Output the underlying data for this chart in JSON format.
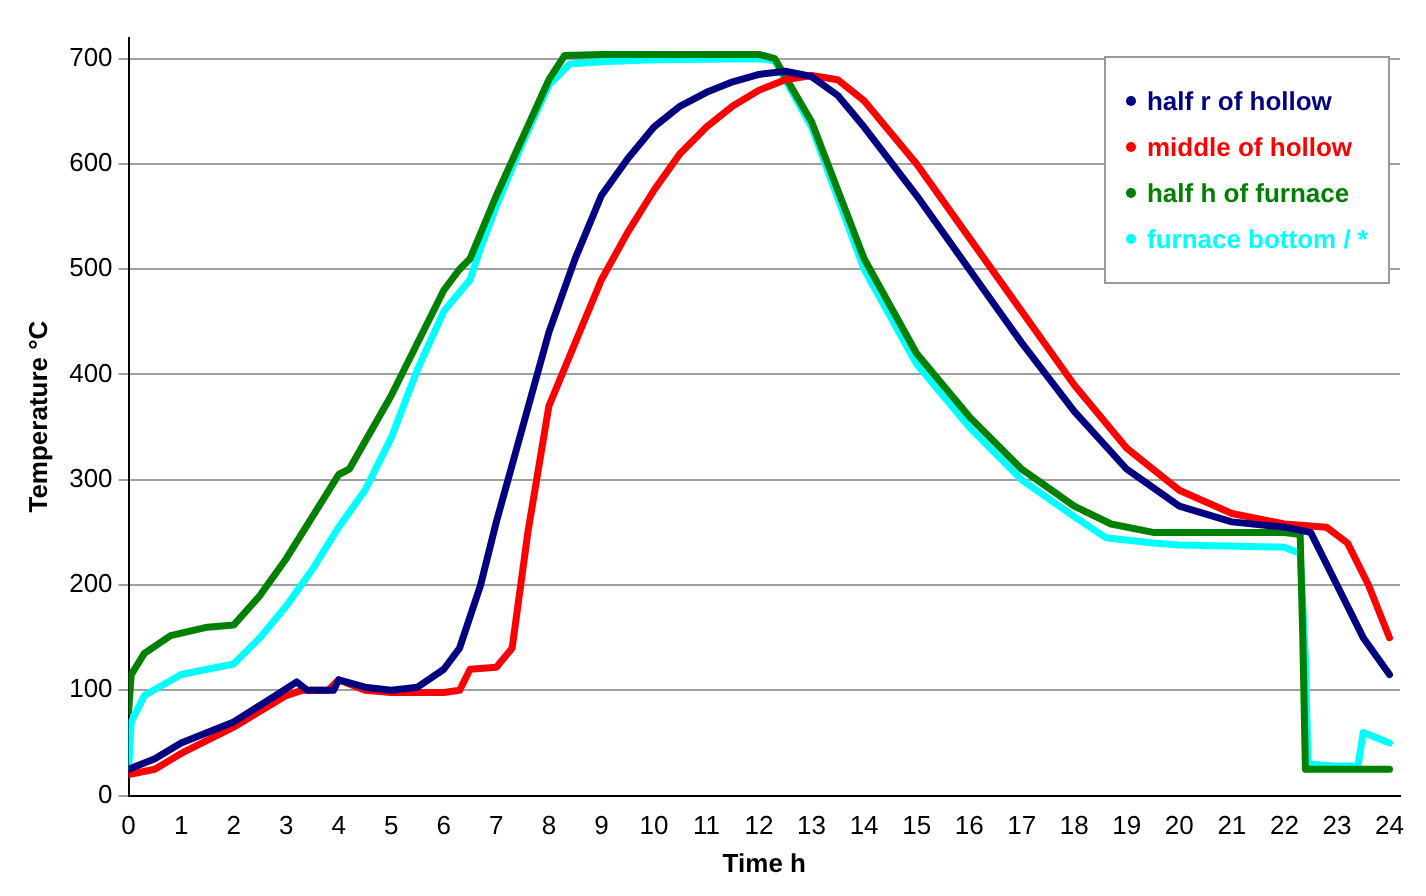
{
  "chart_data": {
    "type": "line",
    "xlabel": "Time h",
    "ylabel": "Temperature °C",
    "xlim": [
      0,
      24.2
    ],
    "ylim": [
      0,
      720
    ],
    "xticks": [
      0,
      1,
      2,
      3,
      4,
      5,
      6,
      7,
      8,
      9,
      10,
      11,
      12,
      13,
      14,
      15,
      16,
      17,
      18,
      19,
      20,
      21,
      22,
      23,
      24
    ],
    "yticks": [
      0,
      100,
      200,
      300,
      400,
      500,
      600,
      700
    ],
    "grid": "y",
    "legend": "top right",
    "series": [
      {
        "name": "half r of hollow",
        "color": "#000080",
        "x": [
          0,
          0.5,
          1,
          2,
          2.8,
          3.2,
          3.4,
          3.9,
          4,
          4.5,
          5,
          5.5,
          6,
          6.3,
          6.7,
          7,
          7.5,
          8,
          8.5,
          9,
          9.5,
          10,
          10.5,
          11,
          11.5,
          12,
          12.5,
          13,
          13.5,
          14,
          15,
          16,
          17,
          18,
          19,
          20,
          21,
          22,
          22.5,
          23,
          23.5,
          24
        ],
        "values": [
          25,
          35,
          50,
          70,
          95,
          108,
          100,
          100,
          110,
          103,
          100,
          103,
          120,
          140,
          200,
          260,
          350,
          440,
          510,
          570,
          605,
          635,
          655,
          668,
          678,
          685,
          688,
          683,
          665,
          635,
          570,
          500,
          430,
          365,
          310,
          275,
          260,
          255,
          250,
          200,
          150,
          115
        ]
      },
      {
        "name": "middle of hollow",
        "color": "#ff0000",
        "x": [
          0,
          0.5,
          1,
          2,
          3,
          3.3,
          3.8,
          4,
          4.5,
          5,
          6,
          6.3,
          6.5,
          7,
          7.3,
          7.6,
          8,
          8.5,
          9,
          9.5,
          10,
          10.5,
          11,
          11.5,
          12,
          12.5,
          13,
          13.5,
          14,
          15,
          16,
          17,
          18,
          19,
          20,
          21,
          22,
          22.8,
          23.2,
          23.6,
          24
        ],
        "values": [
          20,
          25,
          40,
          65,
          95,
          100,
          100,
          110,
          100,
          98,
          98,
          100,
          120,
          122,
          140,
          250,
          370,
          430,
          490,
          535,
          575,
          610,
          635,
          655,
          670,
          680,
          684,
          680,
          660,
          600,
          530,
          460,
          390,
          330,
          290,
          268,
          258,
          255,
          240,
          200,
          150
        ]
      },
      {
        "name": "half h of furnace",
        "color": "#008000",
        "x": [
          0,
          0.05,
          0.3,
          0.8,
          1.5,
          2,
          2.5,
          3,
          3.5,
          4,
          4.2,
          5,
          6,
          6.3,
          6.5,
          7,
          7.5,
          8,
          8.3,
          9,
          10,
          12,
          12.3,
          13,
          14,
          15,
          16,
          17,
          18,
          18.7,
          19.5,
          20,
          22,
          22.3,
          22.35,
          22.4,
          23,
          24
        ],
        "values": [
          80,
          115,
          135,
          152,
          160,
          162,
          190,
          225,
          265,
          305,
          310,
          380,
          480,
          500,
          510,
          570,
          625,
          680,
          703,
          704,
          704,
          704,
          700,
          640,
          510,
          420,
          360,
          310,
          275,
          258,
          250,
          250,
          250,
          248,
          150,
          25,
          25,
          25
        ]
      },
      {
        "name": "furnace bottom / *",
        "color": "#00ffff",
        "x": [
          0,
          0.05,
          0.3,
          1,
          2,
          2.5,
          3,
          3.5,
          4,
          4.5,
          5,
          5.5,
          6,
          6.5,
          6.7,
          7,
          7.5,
          8,
          8.4,
          9,
          10,
          12,
          12.3,
          13,
          14,
          15,
          16,
          17,
          18,
          18.6,
          19.5,
          20,
          22,
          22.3,
          22.4,
          22.45,
          23,
          23.4,
          23.5,
          24
        ],
        "values": [
          25,
          70,
          95,
          115,
          125,
          150,
          180,
          215,
          255,
          290,
          340,
          405,
          460,
          490,
          520,
          560,
          620,
          675,
          695,
          697,
          699,
          700,
          698,
          635,
          500,
          410,
          350,
          300,
          265,
          245,
          240,
          238,
          236,
          230,
          130,
          30,
          28,
          28,
          60,
          50
        ]
      }
    ]
  }
}
